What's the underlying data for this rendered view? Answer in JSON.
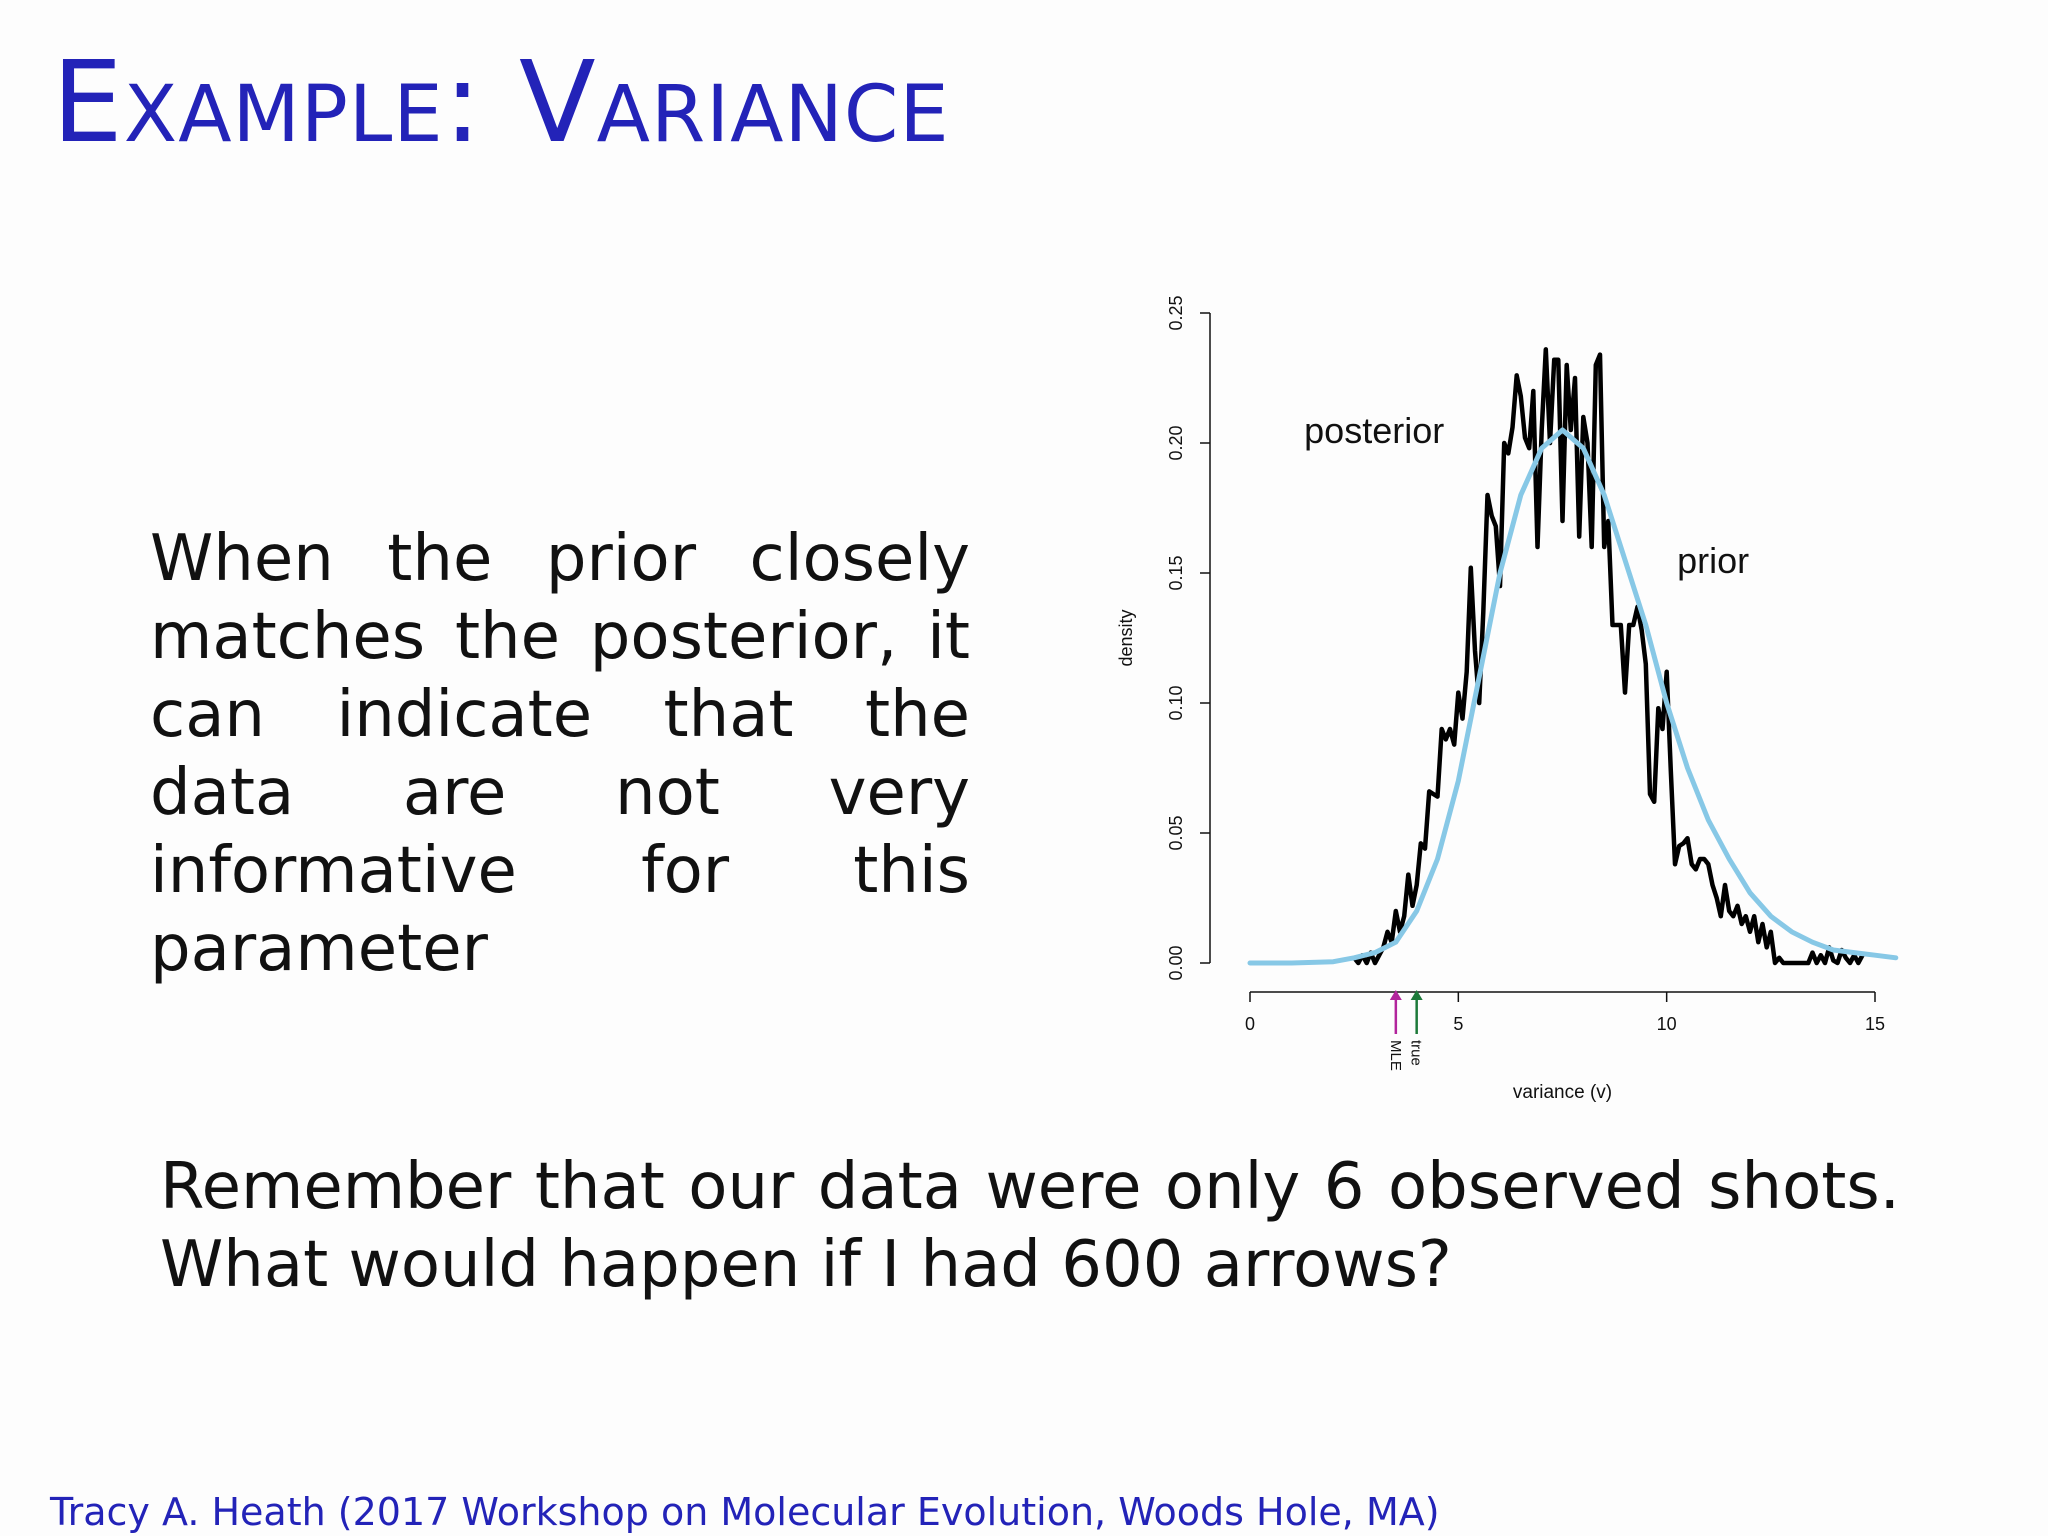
{
  "slide": {
    "title": "Example:  Variance",
    "left_text": "When the prior closely matches the posterior, it can indicate that the data are not very informative for this parameter",
    "bottom_text": "Remember that our data were only 6 observed shots.  What would happen if I had 600 arrows?",
    "footer": "Tracy A. Heath (2017 Workshop on Molecular Evolution, Woods Hole, MA)"
  },
  "colors": {
    "title": "#2323b8",
    "posterior": "#000000",
    "prior": "#87c8e6",
    "mle_marker": "#b2249c",
    "true_marker": "#1d7a3a"
  },
  "chart_data": {
    "type": "line",
    "xlabel": "variance (v)",
    "ylabel": "density",
    "xlim": [
      0,
      15.6
    ],
    "ylim": [
      0,
      0.25
    ],
    "xticks": [
      0,
      5,
      10,
      15
    ],
    "yticks": [
      0.0,
      0.05,
      0.1,
      0.15,
      0.2,
      0.25
    ],
    "ytick_labels": [
      "0.00",
      "0.05",
      "0.10",
      "0.15",
      "0.20",
      "0.25"
    ],
    "grid": false,
    "annotations": [
      {
        "text": "posterior",
        "color": "#000000"
      },
      {
        "text": "prior",
        "color": "#87c8e6"
      }
    ],
    "markers": [
      {
        "label": "MLE",
        "x": 3.5,
        "color": "#b2249c"
      },
      {
        "label": "true",
        "x": 4.0,
        "color": "#1d7a3a"
      }
    ],
    "series": [
      {
        "name": "prior",
        "color": "#87c8e6",
        "x": [
          0,
          1,
          2,
          2.5,
          3,
          3.5,
          4,
          4.5,
          5,
          5.5,
          6,
          6.5,
          7,
          7.5,
          8,
          8.5,
          9,
          9.5,
          10,
          10.5,
          11,
          11.5,
          12,
          12.5,
          13,
          13.5,
          14,
          14.5,
          15,
          15.5
        ],
        "values": [
          0,
          0,
          0.0005,
          0.002,
          0.004,
          0.008,
          0.02,
          0.04,
          0.07,
          0.11,
          0.15,
          0.18,
          0.198,
          0.205,
          0.198,
          0.18,
          0.155,
          0.13,
          0.1,
          0.075,
          0.055,
          0.04,
          0.027,
          0.018,
          0.012,
          0.008,
          0.005,
          0.004,
          0.003,
          0.002
        ]
      },
      {
        "name": "posterior",
        "color": "#000000",
        "x": [
          2.5,
          2.6,
          2.7,
          2.8,
          2.9,
          3.0,
          3.1,
          3.2,
          3.3,
          3.4,
          3.5,
          3.6,
          3.7,
          3.8,
          3.9,
          4.0,
          4.1,
          4.2,
          4.3,
          4.4,
          4.5,
          4.6,
          4.7,
          4.8,
          4.9,
          5.0,
          5.1,
          5.2,
          5.3,
          5.4,
          5.5,
          5.6,
          5.7,
          5.8,
          5.9,
          6.0,
          6.1,
          6.2,
          6.3,
          6.4,
          6.5,
          6.6,
          6.7,
          6.8,
          6.9,
          7.0,
          7.1,
          7.2,
          7.3,
          7.4,
          7.5,
          7.6,
          7.7,
          7.8,
          7.9,
          8.0,
          8.1,
          8.2,
          8.3,
          8.4,
          8.5,
          8.6,
          8.7,
          8.8,
          8.9,
          9.0,
          9.1,
          9.2,
          9.3,
          9.4,
          9.5,
          9.6,
          9.7,
          9.8,
          9.9,
          10.0,
          10.1,
          10.2,
          10.3,
          10.4,
          10.5,
          10.6,
          10.7,
          10.8,
          10.9,
          11.0,
          11.1,
          11.2,
          11.3,
          11.4,
          11.5,
          11.6,
          11.7,
          11.8,
          11.9,
          12.0,
          12.1,
          12.2,
          12.3,
          12.4,
          12.5,
          12.6,
          12.7,
          12.8,
          12.9,
          13.0,
          13.2,
          13.4,
          13.5,
          13.6,
          13.7,
          13.8,
          13.9,
          14.0,
          14.1,
          14.2,
          14.3,
          14.4,
          14.5,
          14.6,
          14.7
        ],
        "values": [
          0.002,
          0.0,
          0.003,
          0.0,
          0.004,
          0.0,
          0.003,
          0.006,
          0.012,
          0.008,
          0.02,
          0.012,
          0.018,
          0.034,
          0.022,
          0.03,
          0.046,
          0.044,
          0.066,
          0.065,
          0.064,
          0.09,
          0.086,
          0.09,
          0.084,
          0.104,
          0.094,
          0.112,
          0.152,
          0.12,
          0.1,
          0.135,
          0.18,
          0.172,
          0.168,
          0.145,
          0.2,
          0.196,
          0.206,
          0.226,
          0.218,
          0.202,
          0.198,
          0.22,
          0.16,
          0.205,
          0.236,
          0.2,
          0.232,
          0.232,
          0.17,
          0.23,
          0.205,
          0.225,
          0.164,
          0.21,
          0.2,
          0.16,
          0.23,
          0.234,
          0.16,
          0.17,
          0.13,
          0.13,
          0.13,
          0.104,
          0.13,
          0.13,
          0.137,
          0.128,
          0.115,
          0.065,
          0.062,
          0.098,
          0.09,
          0.112,
          0.074,
          0.038,
          0.045,
          0.046,
          0.048,
          0.038,
          0.036,
          0.04,
          0.04,
          0.038,
          0.03,
          0.025,
          0.018,
          0.03,
          0.02,
          0.018,
          0.022,
          0.015,
          0.018,
          0.012,
          0.018,
          0.008,
          0.015,
          0.006,
          0.012,
          0.0,
          0.002,
          0.0,
          0.0,
          0.0,
          0.0,
          0.0,
          0.004,
          0.0,
          0.003,
          0.0,
          0.006,
          0.001,
          0.0,
          0.005,
          0.002,
          0.0,
          0.003,
          0.0,
          0.003
        ]
      }
    ]
  }
}
